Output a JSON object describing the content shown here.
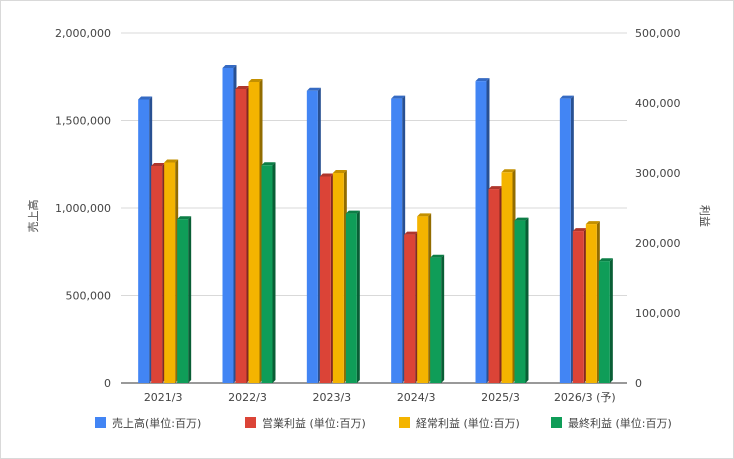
{
  "chart_data": {
    "type": "bar",
    "style": "3d-column",
    "categories": [
      "2021/3",
      "2022/3",
      "2023/3",
      "2024/3",
      "2025/3",
      "2026/3 (予)"
    ],
    "series": [
      {
        "name": "売上高(単位:百万)",
        "axis": "left",
        "color": "#4285F4",
        "values": [
          1620000,
          1800000,
          1670000,
          1625000,
          1725000,
          1625000
        ]
      },
      {
        "name": "営業利益 (単位:百万)",
        "axis": "right",
        "color": "#DB4437",
        "values": [
          310000,
          420000,
          295000,
          212000,
          277000,
          217000
        ]
      },
      {
        "name": "経常利益 (単位:百万)",
        "axis": "right",
        "color": "#F4B400",
        "values": [
          315000,
          430000,
          300000,
          238000,
          301000,
          227000
        ]
      },
      {
        "name": "最終利益 (単位:百万)",
        "axis": "right",
        "color": "#0F9D58",
        "values": [
          234000,
          311000,
          242000,
          179000,
          232000,
          174000
        ]
      }
    ],
    "ylabel": "売上高",
    "y2label": "利益",
    "ylim": [
      0,
      2000000
    ],
    "y2lim": [
      0,
      500000
    ],
    "yticks": [
      "0",
      "500,000",
      "1,000,000",
      "1,500,000",
      "2,000,000"
    ],
    "y2ticks": [
      "0",
      "100,000",
      "200,000",
      "300,000",
      "400,000",
      "500,000"
    ],
    "grid": true,
    "legend_position": "bottom"
  }
}
